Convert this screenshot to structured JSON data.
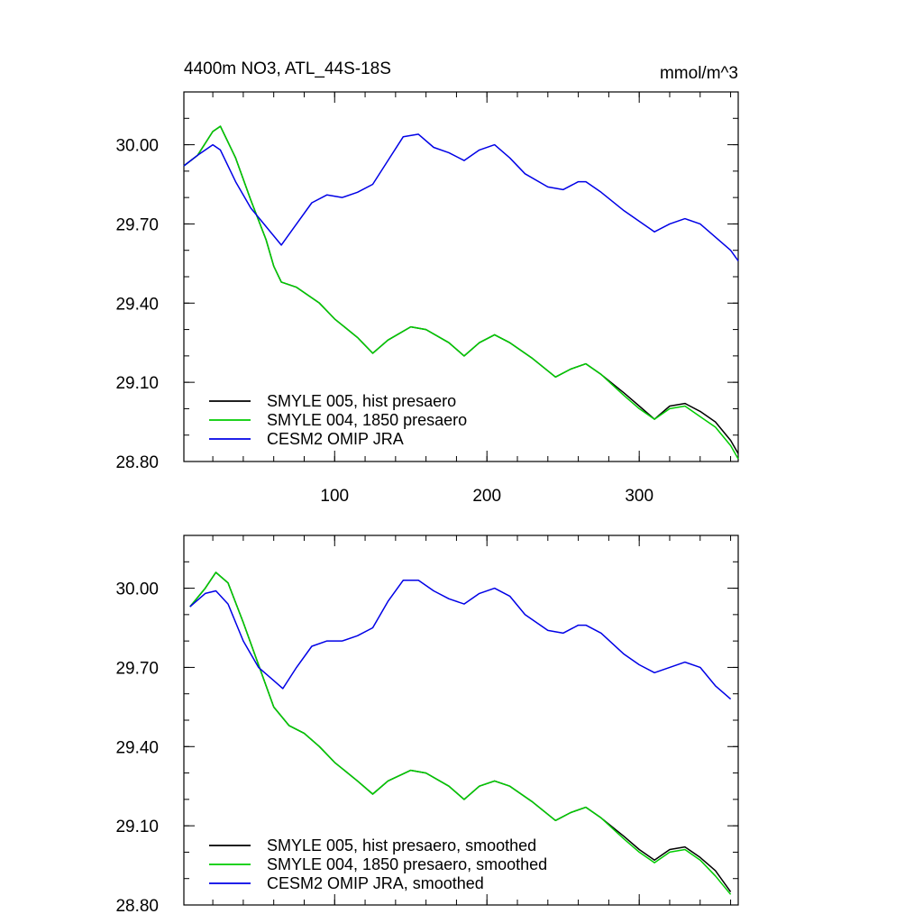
{
  "chart_data": [
    {
      "type": "line",
      "title": "4400m NO3, ATL_44S-18S",
      "units": "mmol/m^3",
      "xlim": [
        1,
        365
      ],
      "ylim": [
        28.8,
        30.2
      ],
      "xticks": [
        100,
        200,
        300
      ],
      "xtick_labels": [
        "100",
        "200",
        "300"
      ],
      "yticks": [
        28.8,
        29.1,
        29.4,
        29.7,
        30.0
      ],
      "ytick_labels": [
        "28.80",
        "29.10",
        "29.40",
        "29.70",
        "30.00"
      ],
      "legend_position": "bottom-left",
      "series": [
        {
          "name": "SMYLE 005, hist presaero",
          "color": "#000000",
          "x": [
            1,
            10,
            20,
            25,
            35,
            45,
            55,
            60,
            65,
            75,
            90,
            100,
            115,
            125,
            135,
            150,
            160,
            175,
            185,
            195,
            205,
            215,
            230,
            245,
            255,
            265,
            275,
            290,
            300,
            310,
            320,
            330,
            340,
            350,
            360,
            365
          ],
          "y": [
            29.92,
            29.96,
            30.05,
            30.07,
            29.95,
            29.79,
            29.64,
            29.54,
            29.48,
            29.46,
            29.4,
            29.34,
            29.27,
            29.21,
            29.26,
            29.31,
            29.3,
            29.25,
            29.2,
            29.25,
            29.28,
            29.25,
            29.19,
            29.12,
            29.15,
            29.17,
            29.13,
            29.06,
            29.01,
            28.96,
            29.01,
            29.02,
            28.99,
            28.95,
            28.88,
            28.83
          ]
        },
        {
          "name": "SMYLE 004, 1850 presaero",
          "color": "#00cc00",
          "x": [
            1,
            10,
            20,
            25,
            35,
            45,
            55,
            60,
            65,
            75,
            90,
            100,
            115,
            125,
            135,
            150,
            160,
            175,
            185,
            195,
            205,
            215,
            230,
            245,
            255,
            265,
            275,
            290,
            300,
            310,
            320,
            330,
            340,
            350,
            360,
            365
          ],
          "y": [
            29.92,
            29.96,
            30.05,
            30.07,
            29.95,
            29.79,
            29.64,
            29.54,
            29.48,
            29.46,
            29.4,
            29.34,
            29.27,
            29.21,
            29.26,
            29.31,
            29.3,
            29.25,
            29.2,
            29.25,
            29.28,
            29.25,
            29.19,
            29.12,
            29.15,
            29.17,
            29.13,
            29.05,
            29.0,
            28.96,
            29.0,
            29.01,
            28.97,
            28.93,
            28.86,
            28.81
          ]
        },
        {
          "name": "CESM2 OMIP JRA",
          "color": "#0000e6",
          "x": [
            1,
            10,
            20,
            25,
            35,
            45,
            55,
            65,
            75,
            85,
            95,
            105,
            115,
            125,
            135,
            145,
            155,
            165,
            175,
            185,
            195,
            205,
            215,
            225,
            240,
            250,
            260,
            265,
            275,
            290,
            300,
            310,
            320,
            330,
            340,
            350,
            360,
            365
          ],
          "y": [
            29.92,
            29.96,
            30.0,
            29.98,
            29.86,
            29.76,
            29.69,
            29.62,
            29.7,
            29.78,
            29.81,
            29.8,
            29.82,
            29.85,
            29.94,
            30.03,
            30.04,
            29.99,
            29.97,
            29.94,
            29.98,
            30.0,
            29.95,
            29.89,
            29.84,
            29.83,
            29.86,
            29.86,
            29.82,
            29.75,
            29.71,
            29.67,
            29.7,
            29.72,
            29.7,
            29.65,
            29.6,
            29.56
          ]
        }
      ]
    },
    {
      "type": "line",
      "xlim": [
        1,
        365
      ],
      "ylim": [
        28.8,
        30.2
      ],
      "xticks": [
        100,
        200,
        300
      ],
      "xtick_labels": [],
      "yticks": [
        28.8,
        29.1,
        29.4,
        29.7,
        30.0
      ],
      "ytick_labels": [
        "28.80",
        "29.10",
        "29.40",
        "29.70",
        "30.00"
      ],
      "legend_position": "bottom-left",
      "series": [
        {
          "name": "SMYLE 005, hist presaero, smoothed",
          "color": "#000000",
          "x": [
            5,
            15,
            22,
            30,
            40,
            50,
            60,
            70,
            80,
            90,
            100,
            115,
            125,
            135,
            150,
            160,
            175,
            185,
            195,
            205,
            215,
            230,
            245,
            255,
            265,
            275,
            290,
            300,
            310,
            320,
            330,
            340,
            350,
            360
          ],
          "y": [
            29.93,
            30.0,
            30.06,
            30.02,
            29.87,
            29.71,
            29.55,
            29.48,
            29.45,
            29.4,
            29.34,
            29.27,
            29.22,
            29.27,
            29.31,
            29.3,
            29.25,
            29.2,
            29.25,
            29.27,
            29.25,
            29.19,
            29.12,
            29.15,
            29.17,
            29.13,
            29.06,
            29.01,
            28.97,
            29.01,
            29.02,
            28.98,
            28.93,
            28.85
          ]
        },
        {
          "name": "SMYLE 004, 1850 presaero, smoothed",
          "color": "#00cc00",
          "x": [
            5,
            15,
            22,
            30,
            40,
            50,
            60,
            70,
            80,
            90,
            100,
            115,
            125,
            135,
            150,
            160,
            175,
            185,
            195,
            205,
            215,
            230,
            245,
            255,
            265,
            275,
            290,
            300,
            310,
            320,
            330,
            340,
            350,
            360
          ],
          "y": [
            29.93,
            30.0,
            30.06,
            30.02,
            29.87,
            29.71,
            29.55,
            29.48,
            29.45,
            29.4,
            29.34,
            29.27,
            29.22,
            29.27,
            29.31,
            29.3,
            29.25,
            29.2,
            29.25,
            29.27,
            29.25,
            29.19,
            29.12,
            29.15,
            29.17,
            29.13,
            29.05,
            29.0,
            28.96,
            29.0,
            29.01,
            28.97,
            28.91,
            28.84
          ]
        },
        {
          "name": "CESM2 OMIP JRA, smoothed",
          "color": "#0000e6",
          "x": [
            5,
            15,
            22,
            30,
            40,
            50,
            60,
            66,
            75,
            85,
            95,
            105,
            115,
            125,
            135,
            145,
            155,
            165,
            175,
            185,
            195,
            205,
            215,
            225,
            240,
            250,
            260,
            265,
            275,
            290,
            300,
            310,
            320,
            330,
            340,
            350,
            360
          ],
          "y": [
            29.93,
            29.98,
            29.99,
            29.94,
            29.8,
            29.7,
            29.65,
            29.62,
            29.7,
            29.78,
            29.8,
            29.8,
            29.82,
            29.85,
            29.95,
            30.03,
            30.03,
            29.99,
            29.96,
            29.94,
            29.98,
            30.0,
            29.97,
            29.9,
            29.84,
            29.83,
            29.86,
            29.86,
            29.83,
            29.75,
            29.71,
            29.68,
            29.7,
            29.72,
            29.7,
            29.63,
            29.58
          ]
        }
      ]
    }
  ]
}
